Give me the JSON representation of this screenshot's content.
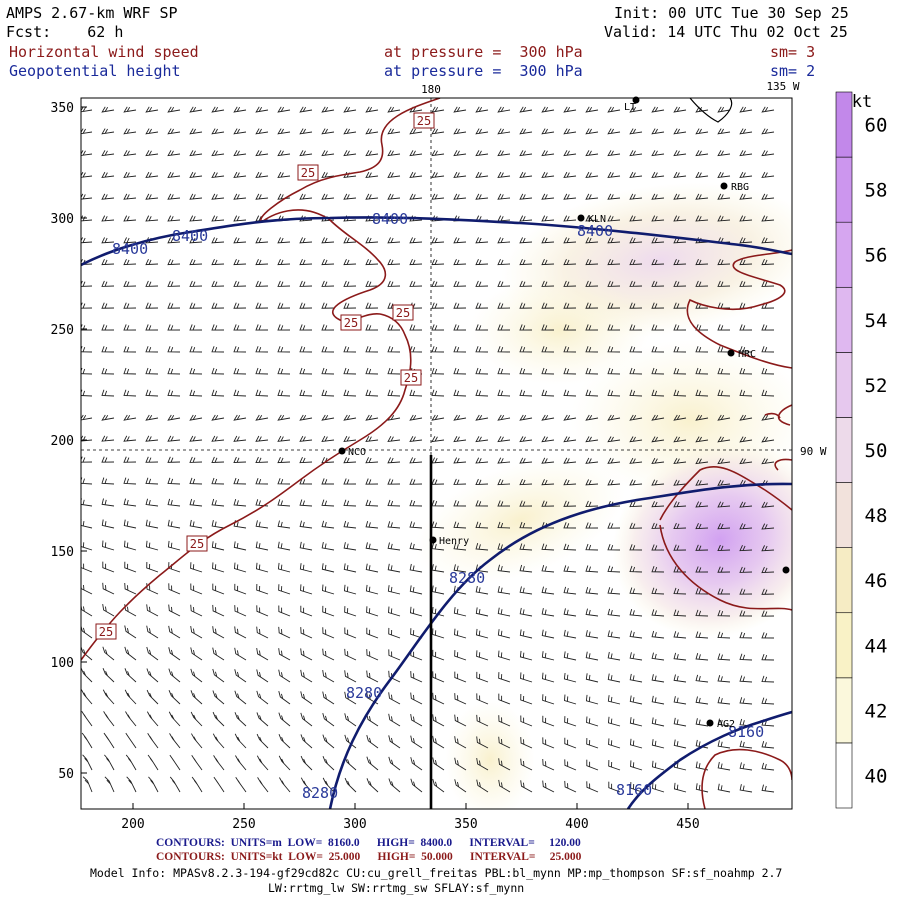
{
  "header": {
    "model": "AMPS 2.67-km WRF SP",
    "init": "Init: 00 UTC Tue 30 Sep 25",
    "fcst": "Fcst:    62 h",
    "valid": "Valid: 14 UTC Thu 02 Oct 25",
    "field1": "Horizontal wind speed",
    "field1_level": "at pressure =  300 hPa",
    "field1_sm": "sm= 3",
    "field2": "Geopotential height",
    "field2_level": "at pressure =  300 hPa",
    "field2_sm": "sm= 2"
  },
  "map": {
    "lon_labels": [
      "180",
      "135 W",
      "90 W"
    ],
    "stations": [
      "KLN",
      "RBG",
      "HRC",
      "NCO",
      "Henry",
      "AG2",
      "LT"
    ],
    "wind_contour_label": "25",
    "height_contour_labels": [
      "8400",
      "8280",
      "8160"
    ],
    "x_ticks": [
      "200",
      "250",
      "300",
      "350",
      "400",
      "450"
    ],
    "y_ticks": [
      "50",
      "100",
      "150",
      "200",
      "250",
      "300",
      "350"
    ]
  },
  "colorbar": {
    "unit": "kt",
    "labels": [
      "40",
      "42",
      "44",
      "46",
      "48",
      "50",
      "52",
      "54",
      "56",
      "58",
      "60"
    ],
    "colors": [
      "#ffffff",
      "#fbf8dc",
      "#f9f2c6",
      "#f6ecc4",
      "#f2e2dc",
      "#eddaea",
      "#e6c8ee",
      "#dfb8f0",
      "#d6a6f0",
      "#cc96ee",
      "#c288ea"
    ]
  },
  "footer": {
    "line1_label": "CONTOURS:",
    "line1_units": "UNITS=m",
    "line1_low": "LOW=  8160.0",
    "line1_high": "HIGH=  8400.0",
    "line1_interval": "INTERVAL=     120.00",
    "line2_label": "CONTOURS:",
    "line2_units": "UNITS=kt",
    "line2_low": "LOW=  25.000",
    "line2_high": "HIGH=  50.000",
    "line2_interval": "INTERVAL=     25.000",
    "model_info_1": "Model Info: MPASv8.2.3-194-gf29cd82c CU:cu_grell_freitas PBL:bl_mynn MP:mp_thompson SF:sf_noahmp 2.7",
    "model_info_2": "LW:rrtmg_lw SW:rrtmg_sw SFLAY:sf_mynn"
  }
}
